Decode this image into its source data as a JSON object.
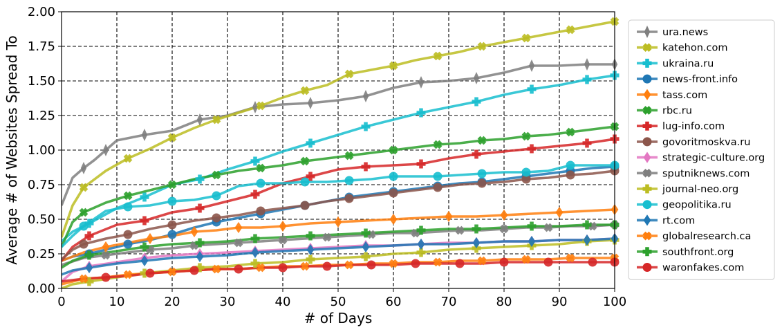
{
  "chart_data": {
    "type": "line",
    "title": "",
    "xlabel": "# of Days",
    "ylabel": "Average # of Websites Spread To",
    "xlim": [
      0,
      100
    ],
    "ylim": [
      0,
      2.0
    ],
    "xticks": [
      0,
      10,
      20,
      30,
      40,
      50,
      60,
      70,
      80,
      90,
      100
    ],
    "yticks": [
      "0.00",
      "0.25",
      "0.50",
      "0.75",
      "1.00",
      "1.25",
      "1.50",
      "1.75",
      "2.00"
    ],
    "grid": true,
    "legend_position": "right",
    "series": [
      {
        "name": "ura.news",
        "color": "#7f7f7f",
        "marker": "thin_diamond",
        "x": [
          0,
          2,
          4,
          6,
          8,
          10,
          15,
          20,
          25,
          30,
          35,
          40,
          45,
          50,
          55,
          60,
          65,
          70,
          75,
          80,
          85,
          90,
          95,
          100
        ],
        "y": [
          0.6,
          0.8,
          0.87,
          0.93,
          1.0,
          1.07,
          1.11,
          1.14,
          1.22,
          1.25,
          1.31,
          1.33,
          1.34,
          1.36,
          1.39,
          1.45,
          1.49,
          1.5,
          1.52,
          1.56,
          1.61,
          1.61,
          1.62,
          1.62
        ]
      },
      {
        "name": "katehon.com",
        "color": "#bcbd22",
        "marker": "X",
        "x": [
          0,
          2,
          4,
          8,
          12,
          16,
          20,
          24,
          28,
          32,
          36,
          40,
          44,
          48,
          52,
          56,
          60,
          64,
          68,
          72,
          76,
          80,
          84,
          88,
          92,
          96,
          100
        ],
        "y": [
          0.37,
          0.6,
          0.73,
          0.85,
          0.94,
          1.01,
          1.09,
          1.16,
          1.22,
          1.27,
          1.32,
          1.38,
          1.43,
          1.47,
          1.55,
          1.58,
          1.61,
          1.65,
          1.68,
          1.71,
          1.75,
          1.78,
          1.81,
          1.84,
          1.87,
          1.9,
          1.93
        ]
      },
      {
        "name": "ukraina.ru",
        "color": "#17becf",
        "marker": "P",
        "x": [
          0,
          2,
          5,
          10,
          15,
          20,
          25,
          30,
          35,
          40,
          45,
          50,
          55,
          60,
          65,
          70,
          75,
          80,
          85,
          90,
          95,
          100
        ],
        "y": [
          0.34,
          0.41,
          0.47,
          0.58,
          0.66,
          0.75,
          0.79,
          0.86,
          0.92,
          0.99,
          1.05,
          1.11,
          1.17,
          1.22,
          1.27,
          1.31,
          1.35,
          1.4,
          1.44,
          1.47,
          1.51,
          1.54
        ]
      },
      {
        "name": "news-front.info",
        "color": "#1f77b4",
        "marker": "o",
        "x": [
          0,
          2,
          5,
          8,
          12,
          16,
          20,
          24,
          28,
          32,
          36,
          40,
          44,
          48,
          52,
          56,
          60,
          64,
          68,
          72,
          76,
          80,
          84,
          88,
          92,
          96,
          100
        ],
        "y": [
          0.2,
          0.23,
          0.25,
          0.28,
          0.32,
          0.35,
          0.39,
          0.44,
          0.48,
          0.51,
          0.54,
          0.57,
          0.6,
          0.63,
          0.66,
          0.68,
          0.7,
          0.72,
          0.74,
          0.76,
          0.77,
          0.79,
          0.81,
          0.83,
          0.85,
          0.87,
          0.88
        ]
      },
      {
        "name": "tass.com",
        "color": "#ff7f0e",
        "marker": "d",
        "x": [
          0,
          4,
          8,
          12,
          16,
          20,
          24,
          28,
          32,
          36,
          40,
          45,
          50,
          55,
          60,
          65,
          70,
          75,
          80,
          85,
          90,
          95,
          100
        ],
        "y": [
          0.2,
          0.26,
          0.3,
          0.33,
          0.36,
          0.38,
          0.41,
          0.42,
          0.44,
          0.44,
          0.45,
          0.47,
          0.48,
          0.49,
          0.5,
          0.51,
          0.52,
          0.52,
          0.53,
          0.54,
          0.55,
          0.56,
          0.57
        ]
      },
      {
        "name": "rbc.ru",
        "color": "#2ca02c",
        "marker": "X",
        "x": [
          0,
          2,
          4,
          8,
          12,
          16,
          20,
          24,
          28,
          32,
          36,
          40,
          44,
          48,
          52,
          56,
          60,
          64,
          68,
          72,
          76,
          80,
          84,
          88,
          92,
          96,
          100
        ],
        "y": [
          0.3,
          0.48,
          0.55,
          0.62,
          0.67,
          0.71,
          0.75,
          0.79,
          0.82,
          0.85,
          0.87,
          0.89,
          0.92,
          0.94,
          0.96,
          0.98,
          1.0,
          1.02,
          1.04,
          1.05,
          1.07,
          1.08,
          1.1,
          1.11,
          1.13,
          1.15,
          1.17
        ]
      },
      {
        "name": "lug-info.com",
        "color": "#d62728",
        "marker": "P",
        "x": [
          0,
          2,
          5,
          10,
          15,
          20,
          25,
          30,
          35,
          40,
          45,
          50,
          55,
          60,
          65,
          70,
          75,
          80,
          85,
          90,
          95,
          100
        ],
        "y": [
          0.2,
          0.3,
          0.38,
          0.46,
          0.49,
          0.55,
          0.58,
          0.63,
          0.68,
          0.76,
          0.81,
          0.86,
          0.88,
          0.89,
          0.9,
          0.94,
          0.97,
          0.99,
          1.01,
          1.03,
          1.05,
          1.08
        ]
      },
      {
        "name": "govoritmoskva.ru",
        "color": "#8c564b",
        "marker": "o",
        "x": [
          0,
          2,
          4,
          8,
          12,
          16,
          20,
          24,
          28,
          32,
          36,
          40,
          44,
          48,
          52,
          56,
          60,
          64,
          68,
          72,
          76,
          80,
          84,
          88,
          92,
          96,
          100
        ],
        "y": [
          0.21,
          0.28,
          0.32,
          0.36,
          0.39,
          0.43,
          0.46,
          0.49,
          0.51,
          0.53,
          0.56,
          0.58,
          0.6,
          0.63,
          0.65,
          0.67,
          0.69,
          0.71,
          0.73,
          0.75,
          0.76,
          0.77,
          0.79,
          0.8,
          0.82,
          0.83,
          0.85
        ]
      },
      {
        "name": "strategic-culture.org",
        "color": "#e377c2",
        "marker": "d",
        "x": [
          0,
          2,
          5,
          10,
          15,
          20,
          25,
          30,
          35,
          40,
          45,
          50,
          55,
          60,
          65,
          70,
          75,
          80,
          85,
          90,
          95,
          100
        ],
        "y": [
          0.05,
          0.12,
          0.16,
          0.19,
          0.22,
          0.24,
          0.25,
          0.26,
          0.27,
          0.28,
          0.29,
          0.3,
          0.31,
          0.31,
          0.32,
          0.33,
          0.33,
          0.34,
          0.34,
          0.35,
          0.35,
          0.36
        ]
      },
      {
        "name": "sputniknews.com",
        "color": "#7f7f7f",
        "marker": "X",
        "x": [
          0,
          4,
          8,
          12,
          16,
          20,
          24,
          28,
          32,
          36,
          40,
          44,
          48,
          52,
          56,
          60,
          64,
          68,
          72,
          76,
          80,
          84,
          88,
          92,
          96,
          100
        ],
        "y": [
          0.17,
          0.22,
          0.24,
          0.26,
          0.28,
          0.29,
          0.31,
          0.32,
          0.33,
          0.34,
          0.35,
          0.36,
          0.37,
          0.38,
          0.39,
          0.4,
          0.4,
          0.41,
          0.42,
          0.42,
          0.43,
          0.44,
          0.44,
          0.45,
          0.45,
          0.46
        ]
      },
      {
        "name": "journal-neo.org",
        "color": "#bcbd22",
        "marker": "P",
        "x": [
          0,
          2,
          5,
          10,
          15,
          20,
          25,
          30,
          35,
          40,
          45,
          50,
          55,
          60,
          65,
          70,
          75,
          80,
          85,
          90,
          95,
          100
        ],
        "y": [
          0.0,
          0.03,
          0.05,
          0.08,
          0.11,
          0.13,
          0.15,
          0.16,
          0.18,
          0.19,
          0.21,
          0.22,
          0.23,
          0.25,
          0.26,
          0.28,
          0.29,
          0.3,
          0.31,
          0.32,
          0.34,
          0.35
        ]
      },
      {
        "name": "geopolitika.ru",
        "color": "#17becf",
        "marker": "o",
        "x": [
          0,
          2,
          4,
          8,
          12,
          16,
          20,
          24,
          28,
          32,
          36,
          40,
          44,
          48,
          52,
          56,
          60,
          64,
          68,
          72,
          76,
          80,
          84,
          88,
          92,
          96,
          100
        ],
        "y": [
          0.3,
          0.38,
          0.45,
          0.56,
          0.59,
          0.6,
          0.63,
          0.64,
          0.67,
          0.74,
          0.76,
          0.76,
          0.77,
          0.77,
          0.78,
          0.79,
          0.81,
          0.81,
          0.81,
          0.82,
          0.83,
          0.84,
          0.84,
          0.85,
          0.89,
          0.89,
          0.89
        ]
      },
      {
        "name": "rt.com",
        "color": "#1f77b4",
        "marker": "d",
        "x": [
          0,
          2,
          5,
          10,
          15,
          20,
          25,
          30,
          35,
          40,
          45,
          50,
          55,
          60,
          65,
          70,
          75,
          80,
          85,
          90,
          95,
          100
        ],
        "y": [
          0.1,
          0.13,
          0.15,
          0.18,
          0.2,
          0.22,
          0.23,
          0.24,
          0.26,
          0.27,
          0.28,
          0.29,
          0.3,
          0.31,
          0.32,
          0.32,
          0.33,
          0.34,
          0.34,
          0.35,
          0.35,
          0.36
        ]
      },
      {
        "name": "globalresearch.ca",
        "color": "#ff7f0e",
        "marker": "X",
        "x": [
          0,
          2,
          4,
          8,
          12,
          16,
          20,
          24,
          28,
          32,
          36,
          40,
          44,
          48,
          52,
          56,
          60,
          64,
          68,
          72,
          76,
          80,
          84,
          88,
          92,
          96,
          100
        ],
        "y": [
          0.03,
          0.05,
          0.07,
          0.08,
          0.1,
          0.11,
          0.12,
          0.13,
          0.14,
          0.14,
          0.15,
          0.16,
          0.16,
          0.17,
          0.17,
          0.18,
          0.18,
          0.19,
          0.19,
          0.2,
          0.2,
          0.21,
          0.21,
          0.21,
          0.22,
          0.22,
          0.22
        ]
      },
      {
        "name": "southfront.org",
        "color": "#2ca02c",
        "marker": "P",
        "x": [
          0,
          2,
          5,
          10,
          15,
          20,
          25,
          30,
          35,
          40,
          45,
          50,
          55,
          60,
          65,
          70,
          75,
          80,
          85,
          90,
          95,
          100
        ],
        "y": [
          0.15,
          0.2,
          0.24,
          0.27,
          0.3,
          0.32,
          0.33,
          0.34,
          0.36,
          0.37,
          0.38,
          0.39,
          0.4,
          0.41,
          0.42,
          0.43,
          0.43,
          0.44,
          0.45,
          0.45,
          0.46,
          0.46
        ]
      },
      {
        "name": "waronfakes.com",
        "color": "#d62728",
        "marker": "o",
        "x": [
          0,
          4,
          8,
          12,
          16,
          20,
          24,
          28,
          32,
          36,
          40,
          44,
          48,
          52,
          56,
          60,
          64,
          68,
          72,
          76,
          80,
          84,
          88,
          92,
          96,
          100
        ],
        "y": [
          0.05,
          0.07,
          0.08,
          0.09,
          0.11,
          0.12,
          0.13,
          0.14,
          0.14,
          0.15,
          0.15,
          0.16,
          0.16,
          0.17,
          0.17,
          0.17,
          0.18,
          0.18,
          0.18,
          0.18,
          0.19,
          0.19,
          0.19,
          0.19,
          0.19,
          0.19
        ]
      }
    ]
  }
}
